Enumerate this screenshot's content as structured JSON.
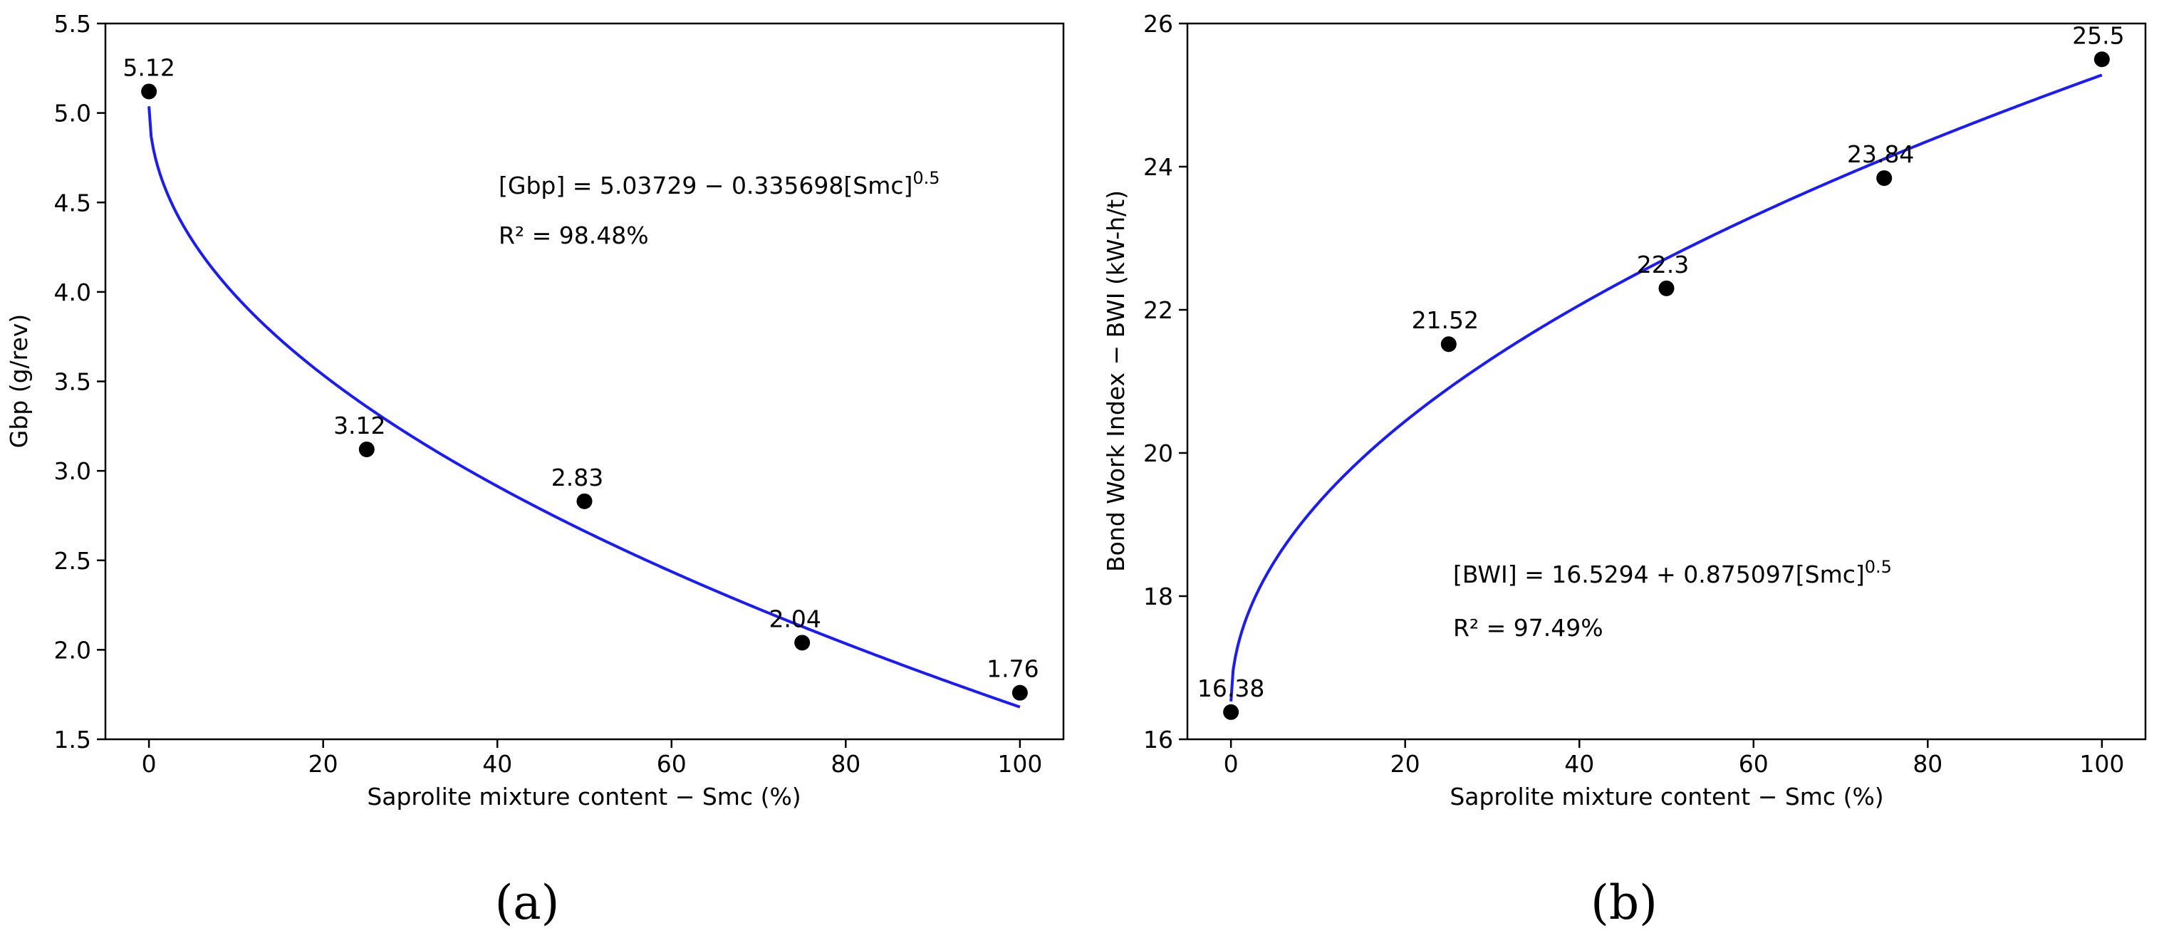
{
  "chart_data": [
    {
      "type": "scatter",
      "panel_label": "(a)",
      "x": [
        0,
        25,
        50,
        75,
        100
      ],
      "y": [
        5.12,
        3.12,
        2.83,
        2.04,
        1.76
      ],
      "point_labels": [
        "5.12",
        "3.12",
        "2.83",
        "2.04",
        "1.76"
      ],
      "xlabel": "Saprolite mixture content − Smc (%)",
      "ylabel": "Gbp (g/rev)",
      "xlim": [
        -5,
        105
      ],
      "ylim": [
        1.5,
        5.5
      ],
      "xticks": [
        0,
        20,
        40,
        60,
        80,
        100
      ],
      "xtick_labels": [
        "0",
        "20",
        "40",
        "60",
        "80",
        "100"
      ],
      "yticks": [
        1.5,
        2.0,
        2.5,
        3.0,
        3.5,
        4.0,
        4.5,
        5.0,
        5.5
      ],
      "ytick_labels": [
        "1.5",
        "2.0",
        "2.5",
        "3.0",
        "3.5",
        "4.0",
        "4.5",
        "5.0",
        "5.5"
      ],
      "fit": {
        "intercept": 5.03729,
        "coef": -0.335698,
        "power": 0.5,
        "color": "#1a1aff"
      },
      "equation": {
        "lhs": "[Gbp] = 5.03729 − 0.335698[Smc]",
        "exponent": "0.5",
        "r2": "R² = 98.48%"
      }
    },
    {
      "type": "scatter",
      "panel_label": "(b)",
      "x": [
        0,
        25,
        50,
        75,
        100
      ],
      "y": [
        16.38,
        21.52,
        22.3,
        23.84,
        25.5
      ],
      "point_labels": [
        "16.38",
        "21.52",
        "22.3",
        "23.84",
        "25.5"
      ],
      "xlabel": "Saprolite mixture content − Smc (%)",
      "ylabel": "Bond Work Index − BWI (kW-h/t)",
      "xlim": [
        -5,
        105
      ],
      "ylim": [
        16,
        26
      ],
      "xticks": [
        0,
        20,
        40,
        60,
        80,
        100
      ],
      "xtick_labels": [
        "0",
        "20",
        "40",
        "60",
        "80",
        "100"
      ],
      "yticks": [
        16,
        18,
        20,
        22,
        24,
        26
      ],
      "ytick_labels": [
        "16",
        "18",
        "20",
        "22",
        "24",
        "26"
      ],
      "fit": {
        "intercept": 16.5294,
        "coef": 0.875097,
        "power": 0.5,
        "color": "#1a1aff"
      },
      "equation": {
        "lhs": "[BWI] = 16.5294 + 0.875097[Smc]",
        "exponent": "0.5",
        "r2": "R² = 97.49%"
      }
    }
  ]
}
